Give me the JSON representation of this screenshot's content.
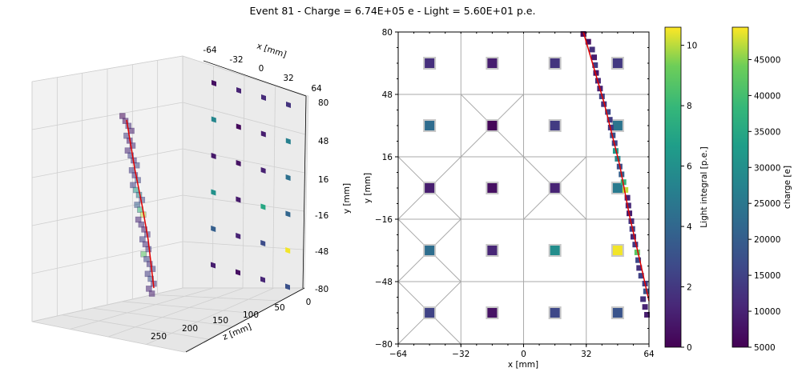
{
  "figure": {
    "title": "Event 81 - Charge = 6.74E+05 e - Light = 5.60E+01 p.e."
  },
  "chart_data": [
    {
      "type": "scatter",
      "name": "3d-view",
      "xlabel": "x [mm]",
      "ylabel": "y [mm]",
      "zlabel": "z [mm]",
      "x_ticks": [
        "-64",
        "-32",
        "0",
        "32",
        "64"
      ],
      "y_ticks": [
        "80",
        "48",
        "16",
        "-16",
        "-48",
        "-80"
      ],
      "z_ticks": [
        "250",
        "200",
        "150",
        "100",
        "50",
        "0"
      ],
      "detectors": [
        {
          "row": 0,
          "cells": [
            0.5,
            1.2,
            1.5,
            1.8
          ]
        },
        {
          "row": 1,
          "cells": [
            5.5,
            0.3,
            1.0,
            5.2
          ]
        },
        {
          "row": 2,
          "cells": [
            0.8,
            0.6,
            1.1,
            4.4
          ]
        },
        {
          "row": 3,
          "cells": [
            6.0,
            0.9,
            7.1,
            3.9
          ]
        },
        {
          "row": 4,
          "cells": [
            3.6,
            1.2,
            2.8,
            10.5
          ]
        },
        {
          "row": 5,
          "cells": [
            1.0,
            0.5,
            1.3,
            3.0
          ]
        }
      ]
    },
    {
      "type": "scatter",
      "name": "xy-projection",
      "xlabel": "x [mm]",
      "ylabel": "y [mm]",
      "xlim": [
        -64,
        64
      ],
      "ylim": [
        -80,
        80
      ],
      "x_ticks": [
        -64,
        -32,
        0,
        32,
        64
      ],
      "y_ticks": [
        -80,
        -48,
        -16,
        16,
        48,
        80
      ],
      "detectors": [
        {
          "x": -48,
          "y": 64,
          "light": 1.6
        },
        {
          "x": -16,
          "y": 64,
          "light": 1.0
        },
        {
          "x": 16,
          "y": 64,
          "light": 1.8
        },
        {
          "x": 48,
          "y": 64,
          "light": 2.0
        },
        {
          "x": -48,
          "y": 32,
          "light": 4.2
        },
        {
          "x": -16,
          "y": 32,
          "light": 0.2
        },
        {
          "x": 16,
          "y": 32,
          "light": 2.1
        },
        {
          "x": 48,
          "y": 32,
          "light": 4.6
        },
        {
          "x": -48,
          "y": 0,
          "light": 1.0
        },
        {
          "x": -16,
          "y": 0,
          "light": 0.5
        },
        {
          "x": 16,
          "y": 0,
          "light": 1.2
        },
        {
          "x": 48,
          "y": 0,
          "light": 4.9
        },
        {
          "x": -48,
          "y": -32,
          "light": 4.3
        },
        {
          "x": -16,
          "y": -32,
          "light": 1.3
        },
        {
          "x": 16,
          "y": -32,
          "light": 5.8
        },
        {
          "x": 48,
          "y": -32,
          "light": 10.5
        },
        {
          "x": -48,
          "y": -64,
          "light": 2.4
        },
        {
          "x": -16,
          "y": -64,
          "light": 0.6
        },
        {
          "x": 16,
          "y": -64,
          "light": 2.6
        },
        {
          "x": 48,
          "y": -64,
          "light": 3.1
        }
      ],
      "hits": [
        {
          "x": 30.5,
          "y": 79,
          "q": 6000
        },
        {
          "x": 33,
          "y": 75,
          "q": 7000
        },
        {
          "x": 35,
          "y": 71,
          "q": 12000
        },
        {
          "x": 36,
          "y": 67,
          "q": 9000
        },
        {
          "x": 36.5,
          "y": 63,
          "q": 14000
        },
        {
          "x": 37,
          "y": 59,
          "q": 8000
        },
        {
          "x": 38,
          "y": 55,
          "q": 11000
        },
        {
          "x": 39,
          "y": 51,
          "q": 10000
        },
        {
          "x": 40,
          "y": 47,
          "q": 15000
        },
        {
          "x": 41,
          "y": 43,
          "q": 12000
        },
        {
          "x": 43,
          "y": 39,
          "q": 16000
        },
        {
          "x": 44,
          "y": 35,
          "q": 14000
        },
        {
          "x": 44.5,
          "y": 31,
          "q": 13000
        },
        {
          "x": 45.5,
          "y": 27,
          "q": 18000
        },
        {
          "x": 46.5,
          "y": 23,
          "q": 15000
        },
        {
          "x": 47,
          "y": 19,
          "q": 32000
        },
        {
          "x": 48,
          "y": 15,
          "q": 28000
        },
        {
          "x": 49,
          "y": 11,
          "q": 17000
        },
        {
          "x": 50,
          "y": 7,
          "q": 20000
        },
        {
          "x": 51,
          "y": 3,
          "q": 38000
        },
        {
          "x": 52,
          "y": -1,
          "q": 47000
        },
        {
          "x": 53,
          "y": -5,
          "q": 10000
        },
        {
          "x": 53.5,
          "y": -9,
          "q": 11000
        },
        {
          "x": 54,
          "y": -13,
          "q": 9000
        },
        {
          "x": 55,
          "y": -17,
          "q": 12000
        },
        {
          "x": 55.5,
          "y": -21,
          "q": 14000
        },
        {
          "x": 56,
          "y": -25,
          "q": 11000
        },
        {
          "x": 57,
          "y": -29,
          "q": 13000
        },
        {
          "x": 58,
          "y": -33,
          "q": 42000
        },
        {
          "x": 58.5,
          "y": -37,
          "q": 16000
        },
        {
          "x": 59,
          "y": -41,
          "q": 12000
        },
        {
          "x": 60,
          "y": -45,
          "q": 15000
        },
        {
          "x": 62,
          "y": -49,
          "q": 14000
        },
        {
          "x": 62.5,
          "y": -53,
          "q": 18000
        },
        {
          "x": 61,
          "y": -57,
          "q": 12000
        },
        {
          "x": 62,
          "y": -61,
          "q": 10000
        },
        {
          "x": 63,
          "y": -65,
          "q": 9000
        }
      ],
      "track": [
        [
          30.5,
          80
        ],
        [
          41,
          44
        ],
        [
          49,
          12
        ],
        [
          54,
          -14
        ],
        [
          60,
          -40
        ],
        [
          64,
          -58
        ]
      ]
    },
    {
      "type": "colorbar",
      "name": "light-colorbar",
      "label": "Light integral [p.e.]",
      "range": [
        0,
        10.6
      ],
      "ticks": [
        0,
        2,
        4,
        6,
        8,
        10
      ]
    },
    {
      "type": "colorbar",
      "name": "charge-colorbar",
      "label": "charge [e]",
      "range": [
        5000,
        49500
      ],
      "ticks": [
        5000,
        10000,
        15000,
        20000,
        25000,
        30000,
        35000,
        40000,
        45000
      ]
    }
  ]
}
